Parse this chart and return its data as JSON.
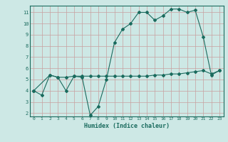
{
  "title": "",
  "xlabel": "Humidex (Indice chaleur)",
  "bg_color": "#cde8e5",
  "line_color": "#1a6b5e",
  "grid_color": "#b0d4d0",
  "series1_x": [
    0,
    1,
    2,
    3,
    4,
    5,
    6,
    7,
    8,
    9,
    10,
    11,
    12,
    13,
    14,
    15,
    16,
    17,
    18,
    19,
    20,
    21,
    22,
    23
  ],
  "series1_y": [
    4.0,
    3.6,
    5.4,
    5.2,
    4.0,
    5.3,
    5.2,
    1.8,
    2.6,
    5.0,
    8.3,
    9.5,
    10.0,
    11.0,
    11.0,
    10.3,
    10.7,
    11.3,
    11.3,
    11.0,
    11.2,
    8.8,
    5.4,
    5.8
  ],
  "series2_x": [
    0,
    2,
    3,
    4,
    5,
    6,
    7,
    8,
    9,
    10,
    11,
    12,
    13,
    14,
    15,
    16,
    17,
    18,
    19,
    20,
    21,
    22,
    23
  ],
  "series2_y": [
    4.0,
    5.4,
    5.2,
    5.2,
    5.3,
    5.3,
    5.3,
    5.3,
    5.3,
    5.3,
    5.3,
    5.3,
    5.3,
    5.3,
    5.4,
    5.4,
    5.5,
    5.5,
    5.6,
    5.7,
    5.8,
    5.5,
    5.8
  ],
  "xlim": [
    -0.5,
    23.5
  ],
  "ylim": [
    1.7,
    11.6
  ],
  "yticks": [
    2,
    3,
    4,
    5,
    6,
    7,
    8,
    9,
    10,
    11
  ],
  "xticks": [
    0,
    1,
    2,
    3,
    4,
    5,
    6,
    7,
    8,
    9,
    10,
    11,
    12,
    13,
    14,
    15,
    16,
    17,
    18,
    19,
    20,
    21,
    22,
    23
  ]
}
